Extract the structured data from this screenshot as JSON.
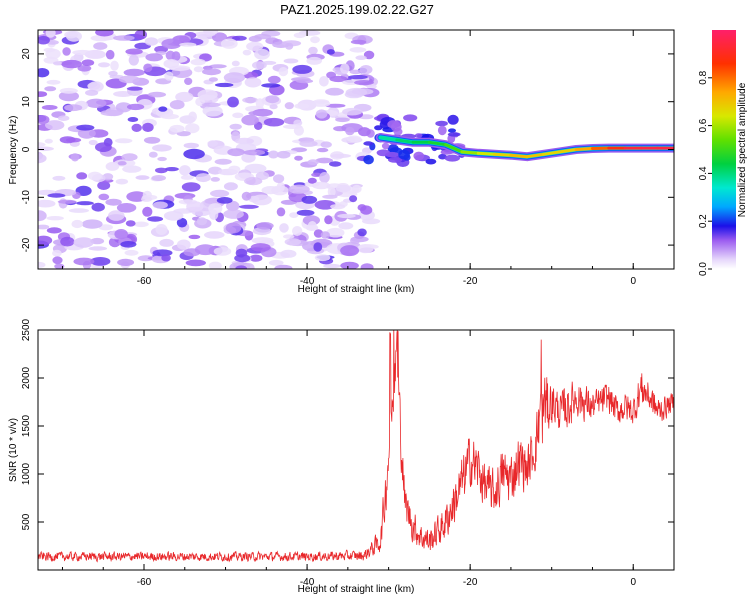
{
  "page": {
    "title": "PAZ1.2025.199.02.22.G27"
  },
  "chart_data": [
    {
      "type": "heatmap",
      "title": "PAZ1.2025.199.02.22.G27",
      "xlabel": "Height of straight line (km)",
      "ylabel": "Frequency (Hz)",
      "xlim": [
        -73,
        5
      ],
      "ylim": [
        -25,
        25
      ],
      "xticks": [
        -60,
        -40,
        -20,
        0
      ],
      "yticks": [
        20,
        10,
        0,
        -10,
        -20
      ],
      "noise_region_x": [
        -73,
        -32
      ],
      "signal_track": {
        "x": [
          -31,
          -29,
          -27,
          -25,
          -23,
          -21,
          -19,
          -17,
          -15,
          -13,
          -11,
          -9,
          -7,
          -5,
          -3,
          -1,
          1,
          3,
          5
        ],
        "frequency": [
          2.5,
          2.0,
          1.5,
          1.5,
          1.0,
          -0.5,
          -0.8,
          -1.0,
          -1.2,
          -1.5,
          -1.0,
          -0.5,
          0,
          0.2,
          0.3,
          0.3,
          0.3,
          0.3,
          0.3
        ],
        "amplitude": [
          0.35,
          0.4,
          0.42,
          0.45,
          0.48,
          0.55,
          0.62,
          0.65,
          0.7,
          0.72,
          0.68,
          0.66,
          0.7,
          0.78,
          0.85,
          0.92,
          0.95,
          0.95,
          0.95
        ]
      },
      "colorbar": {
        "label": "Normalized spectral amplitude",
        "range": [
          0,
          1
        ],
        "ticks": [
          0.0,
          0.2,
          0.4,
          0.6,
          0.8
        ],
        "tick_labels": [
          "0.0",
          "0.2",
          "0.4",
          "0.6",
          "0.8"
        ]
      }
    },
    {
      "type": "line",
      "xlabel": "Height of straight line (km)",
      "ylabel": "SNR (10 * v/v)",
      "xlim": [
        -73,
        5
      ],
      "ylim": [
        0,
        2500
      ],
      "xticks": [
        -60,
        -40,
        -20,
        0
      ],
      "yticks": [
        500,
        1000,
        1500,
        2000,
        2500
      ],
      "series_color": "#e8272a",
      "envelope": {
        "x": [
          -73,
          -60,
          -40,
          -33,
          -31,
          -30.5,
          -30,
          -29.5,
          -29,
          -28.5,
          -28,
          -27,
          -26,
          -25,
          -24,
          -23,
          -22,
          -21,
          -20,
          -19,
          -18,
          -17,
          -16,
          -15,
          -14,
          -13,
          -12,
          -11.5,
          -11,
          -10,
          -9,
          -8,
          -7,
          -6,
          -5,
          -4,
          -3,
          -2,
          -1,
          0,
          1,
          2,
          3,
          4,
          5
        ],
        "center": [
          140,
          140,
          140,
          150,
          300,
          700,
          1200,
          1900,
          2300,
          1400,
          700,
          450,
          350,
          300,
          400,
          500,
          700,
          900,
          1150,
          1050,
          850,
          800,
          1000,
          950,
          1150,
          1050,
          1300,
          1500,
          1650,
          1750,
          1650,
          1700,
          1800,
          1750,
          1700,
          1750,
          1800,
          1650,
          1700,
          1650,
          1900,
          1800,
          1650,
          1700,
          1750
        ],
        "amplitude": [
          60,
          60,
          60,
          70,
          150,
          300,
          400,
          400,
          300,
          350,
          250,
          220,
          180,
          180,
          200,
          250,
          300,
          350,
          350,
          350,
          300,
          300,
          350,
          350,
          350,
          300,
          350,
          450,
          500,
          300,
          250,
          300,
          250,
          250,
          200,
          200,
          200,
          200,
          200,
          200,
          250,
          200,
          200,
          150,
          150
        ]
      }
    }
  ]
}
